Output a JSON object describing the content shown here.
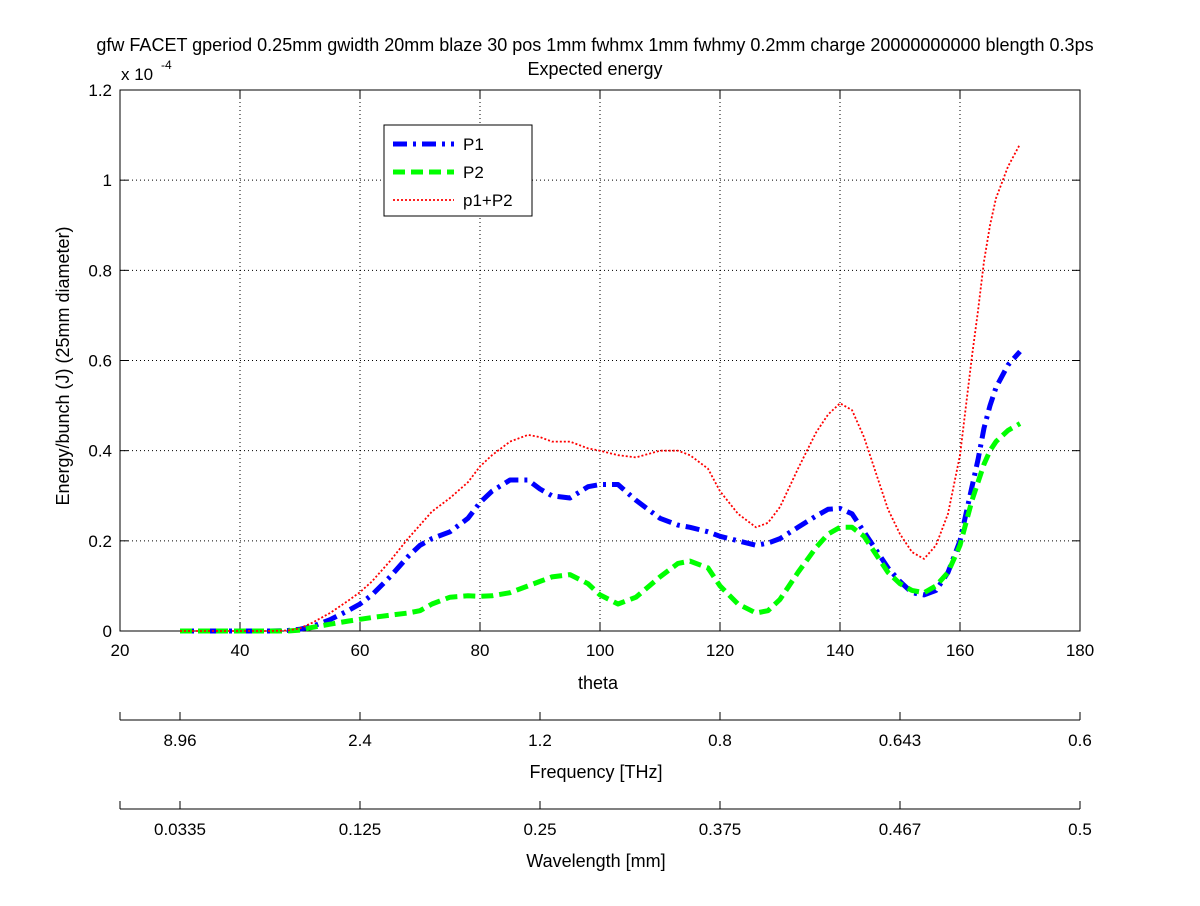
{
  "chart_data": {
    "type": "line",
    "title": "gfw FACET gperiod 0.25mm gwidth 20mm blaze 30 pos 1mm fwhmx 1mm fwhmy 0.2mm charge 20000000000 blength 0.3ps",
    "subtitle": "Expected energy",
    "xlabel": "theta",
    "ylabel": "Energy/bunch (J) (25mm diameter)",
    "y_exponent_label": "x 10",
    "y_exponent_value": "-4",
    "xlim": [
      20,
      180
    ],
    "ylim": [
      0,
      1.2
    ],
    "grid": true,
    "legend_position": "top-left",
    "x_ticks": [
      20,
      40,
      60,
      80,
      100,
      120,
      140,
      160,
      180
    ],
    "x_tick_labels": [
      "20",
      "40",
      "60",
      "80",
      "100",
      "120",
      "140",
      "160",
      "180"
    ],
    "y_ticks": [
      0,
      0.2,
      0.4,
      0.6,
      0.8,
      1,
      1.2
    ],
    "y_tick_labels": [
      "0",
      "0.2",
      "0.4",
      "0.6",
      "0.8",
      "1",
      "1.2"
    ],
    "x": [
      30,
      35,
      40,
      45,
      48,
      50,
      52,
      55,
      58,
      60,
      62,
      65,
      68,
      70,
      72,
      75,
      78,
      80,
      82,
      85,
      88,
      90,
      92,
      95,
      98,
      100,
      103,
      106,
      110,
      113,
      115,
      118,
      120,
      123,
      126,
      128,
      130,
      133,
      136,
      138,
      140,
      142,
      144,
      146,
      148,
      150,
      152,
      154,
      156,
      158,
      160,
      161,
      162,
      163,
      164,
      165,
      166,
      168,
      170
    ],
    "series": [
      {
        "name": "P1",
        "color": "#0000ff",
        "style": "dash-dot",
        "values": [
          0,
          0,
          0,
          0,
          0.001,
          0.004,
          0.01,
          0.025,
          0.045,
          0.06,
          0.08,
          0.12,
          0.165,
          0.19,
          0.205,
          0.22,
          0.25,
          0.285,
          0.31,
          0.335,
          0.335,
          0.315,
          0.3,
          0.295,
          0.32,
          0.325,
          0.325,
          0.29,
          0.25,
          0.235,
          0.23,
          0.22,
          0.21,
          0.2,
          0.19,
          0.195,
          0.205,
          0.23,
          0.255,
          0.27,
          0.272,
          0.26,
          0.22,
          0.18,
          0.14,
          0.11,
          0.085,
          0.08,
          0.09,
          0.13,
          0.2,
          0.26,
          0.32,
          0.38,
          0.45,
          0.5,
          0.54,
          0.59,
          0.62
        ]
      },
      {
        "name": "P2",
        "color": "#00ff00",
        "style": "dashed",
        "values": [
          0,
          0,
          0,
          0,
          0,
          0.002,
          0.008,
          0.015,
          0.022,
          0.026,
          0.03,
          0.035,
          0.04,
          0.045,
          0.06,
          0.075,
          0.078,
          0.077,
          0.078,
          0.085,
          0.1,
          0.11,
          0.12,
          0.125,
          0.105,
          0.08,
          0.06,
          0.075,
          0.12,
          0.15,
          0.155,
          0.14,
          0.1,
          0.06,
          0.04,
          0.045,
          0.07,
          0.13,
          0.185,
          0.215,
          0.23,
          0.23,
          0.21,
          0.17,
          0.13,
          0.105,
          0.09,
          0.085,
          0.1,
          0.13,
          0.19,
          0.24,
          0.29,
          0.33,
          0.37,
          0.4,
          0.42,
          0.445,
          0.46
        ]
      },
      {
        "name": "p1+P2",
        "color": "#ff0000",
        "style": "dotted",
        "values": [
          0,
          0,
          0,
          0,
          0.001,
          0.006,
          0.018,
          0.04,
          0.067,
          0.086,
          0.11,
          0.155,
          0.205,
          0.235,
          0.265,
          0.295,
          0.33,
          0.365,
          0.39,
          0.42,
          0.435,
          0.43,
          0.42,
          0.42,
          0.405,
          0.4,
          0.39,
          0.385,
          0.4,
          0.4,
          0.39,
          0.36,
          0.31,
          0.26,
          0.23,
          0.24,
          0.275,
          0.36,
          0.44,
          0.48,
          0.505,
          0.49,
          0.43,
          0.35,
          0.27,
          0.215,
          0.175,
          0.16,
          0.19,
          0.26,
          0.39,
          0.5,
          0.61,
          0.71,
          0.82,
          0.9,
          0.96,
          1.03,
          1.08
        ]
      }
    ],
    "secondary_axes": [
      {
        "label": "Frequency [THz]",
        "tick_labels": [
          "8.96",
          "2.4",
          "1.2",
          "0.8",
          "0.643",
          "0.6"
        ]
      },
      {
        "label": "Wavelength [mm]",
        "tick_labels": [
          "0.0335",
          "0.125",
          "0.25",
          "0.375",
          "0.467",
          "0.5"
        ]
      }
    ]
  }
}
